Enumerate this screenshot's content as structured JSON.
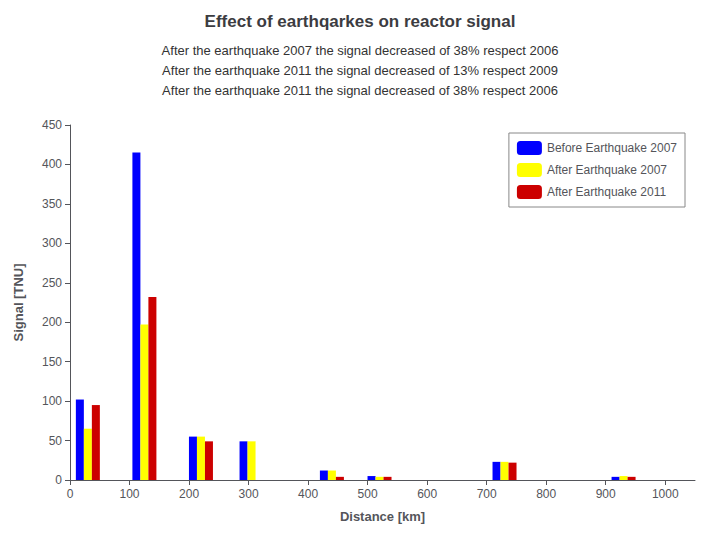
{
  "chart_data": {
    "type": "bar",
    "title": "Effect of earthqarkes on reactor signal",
    "subtitle": [
      "After the earthquake 2007 the signal decreased of 38% respect 2006",
      "After the earthquake 2011 the signal decreased of 13% respect 2009",
      "After the earthquake 2011 the signal decreased of 38% respect 2006"
    ],
    "xlabel": "Distance [km]",
    "ylabel": "Signal [TNU]",
    "x": [
      30,
      125,
      220,
      305,
      440,
      520,
      730,
      930
    ],
    "series": [
      {
        "name": "Before Earthquake 2007",
        "color": "#0000ff",
        "values": [
          102,
          415,
          55,
          49,
          12,
          5,
          23,
          4
        ]
      },
      {
        "name": "After Earthquake 2007",
        "color": "#ffff00",
        "values": [
          65,
          197,
          55,
          49,
          12,
          4,
          23,
          5
        ]
      },
      {
        "name": "After Earthquake 2011",
        "color": "#cc0000",
        "values": [
          95,
          232,
          49,
          0,
          4,
          4,
          22,
          4
        ]
      }
    ],
    "xlim": [
      0,
      1050
    ],
    "ylim": [
      0,
      450
    ],
    "xticks": [
      0,
      100,
      200,
      300,
      400,
      500,
      600,
      700,
      800,
      900,
      1000
    ],
    "yticks": [
      0,
      50,
      100,
      150,
      200,
      250,
      300,
      350,
      400,
      450
    ],
    "grid": false,
    "legend": "upper right"
  }
}
